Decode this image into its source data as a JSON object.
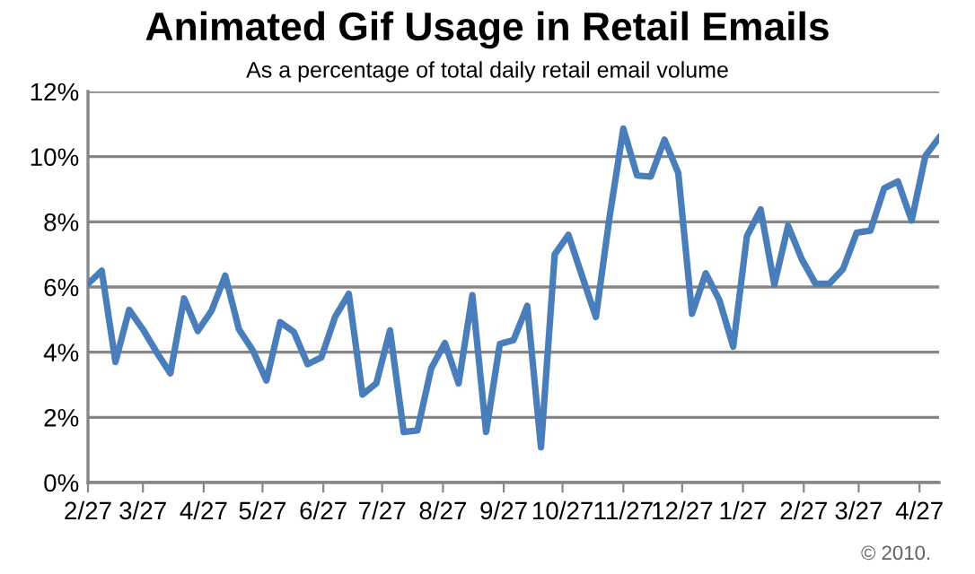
{
  "chart_data": {
    "type": "line",
    "title": "Animated Gif Usage in Retail Emails",
    "subtitle": "As a percentage of total daily retail email volume",
    "x": [
      "2009-02-27",
      "2009-03-06",
      "2009-03-13",
      "2009-03-20",
      "2009-03-27",
      "2009-04-03",
      "2009-04-10",
      "2009-04-17",
      "2009-04-24",
      "2009-05-01",
      "2009-05-08",
      "2009-05-15",
      "2009-05-22",
      "2009-05-29",
      "2009-06-05",
      "2009-06-12",
      "2009-06-19",
      "2009-06-26",
      "2009-07-03",
      "2009-07-10",
      "2009-07-17",
      "2009-07-24",
      "2009-07-31",
      "2009-08-07",
      "2009-08-14",
      "2009-08-21",
      "2009-08-28",
      "2009-09-04",
      "2009-09-11",
      "2009-09-18",
      "2009-09-25",
      "2009-10-02",
      "2009-10-09",
      "2009-10-16",
      "2009-10-23",
      "2009-10-30",
      "2009-11-06",
      "2009-11-13",
      "2009-11-20",
      "2009-11-27",
      "2009-12-04",
      "2009-12-11",
      "2009-12-18",
      "2009-12-25",
      "2010-01-01",
      "2010-01-08",
      "2010-01-15",
      "2010-01-22",
      "2010-01-29",
      "2010-02-05",
      "2010-02-12",
      "2010-02-19",
      "2010-02-26",
      "2010-03-05",
      "2010-03-12",
      "2010-03-19",
      "2010-03-26",
      "2010-04-02",
      "2010-04-09",
      "2010-04-16",
      "2010-04-23",
      "2010-04-30",
      "2010-05-07"
    ],
    "series": [
      {
        "color": "#4a7ebb",
        "values": [
          6.1,
          6.5,
          3.7,
          5.3,
          4.7,
          4.0,
          3.35,
          5.65,
          4.65,
          5.27,
          6.35,
          4.7,
          4.06,
          3.13,
          4.92,
          4.62,
          3.63,
          3.84,
          5.08,
          5.79,
          2.7,
          3.04,
          4.67,
          1.55,
          1.6,
          3.5,
          4.28,
          3.04,
          5.75,
          1.55,
          4.25,
          4.37,
          5.42,
          1.08,
          7.0,
          7.6,
          6.33,
          5.08,
          8.16,
          10.86,
          9.42,
          9.39,
          10.52,
          9.5,
          5.18,
          6.42,
          5.59,
          4.17,
          7.56,
          8.38,
          6.07,
          7.88,
          6.85,
          6.1,
          6.1,
          6.55,
          7.67,
          7.73,
          9.03,
          9.24,
          8.04,
          10.02,
          10.58
        ]
      }
    ],
    "xlim": [
      "2009-02-27",
      "2010-05-07"
    ],
    "xticks": [
      {
        "value": "2009-02-27",
        "label": "2/27"
      },
      {
        "value": "2009-03-27",
        "label": "3/27"
      },
      {
        "value": "2009-04-27",
        "label": "4/27"
      },
      {
        "value": "2009-05-27",
        "label": "5/27"
      },
      {
        "value": "2009-06-27",
        "label": "6/27"
      },
      {
        "value": "2009-07-27",
        "label": "7/27"
      },
      {
        "value": "2009-08-27",
        "label": "8/27"
      },
      {
        "value": "2009-09-27",
        "label": "9/27"
      },
      {
        "value": "2009-10-27",
        "label": "10/27"
      },
      {
        "value": "2009-11-27",
        "label": "11/27"
      },
      {
        "value": "2009-12-27",
        "label": "12/27"
      },
      {
        "value": "2010-01-27",
        "label": "1/27"
      },
      {
        "value": "2010-02-27",
        "label": "2/27"
      },
      {
        "value": "2010-03-27",
        "label": "3/27"
      },
      {
        "value": "2010-04-27",
        "label": "4/27"
      }
    ],
    "ylim": [
      0,
      12
    ],
    "yticks": [
      {
        "value": 0,
        "label": "0%"
      },
      {
        "value": 2,
        "label": "2%"
      },
      {
        "value": 4,
        "label": "4%"
      },
      {
        "value": 6,
        "label": "6%"
      },
      {
        "value": 8,
        "label": "8%"
      },
      {
        "value": 10,
        "label": "10%"
      },
      {
        "value": 12,
        "label": "12%"
      }
    ],
    "grid": "y",
    "legend": false,
    "marker": "none",
    "line_style": "solid",
    "annotations": [
      "© 2010."
    ]
  }
}
